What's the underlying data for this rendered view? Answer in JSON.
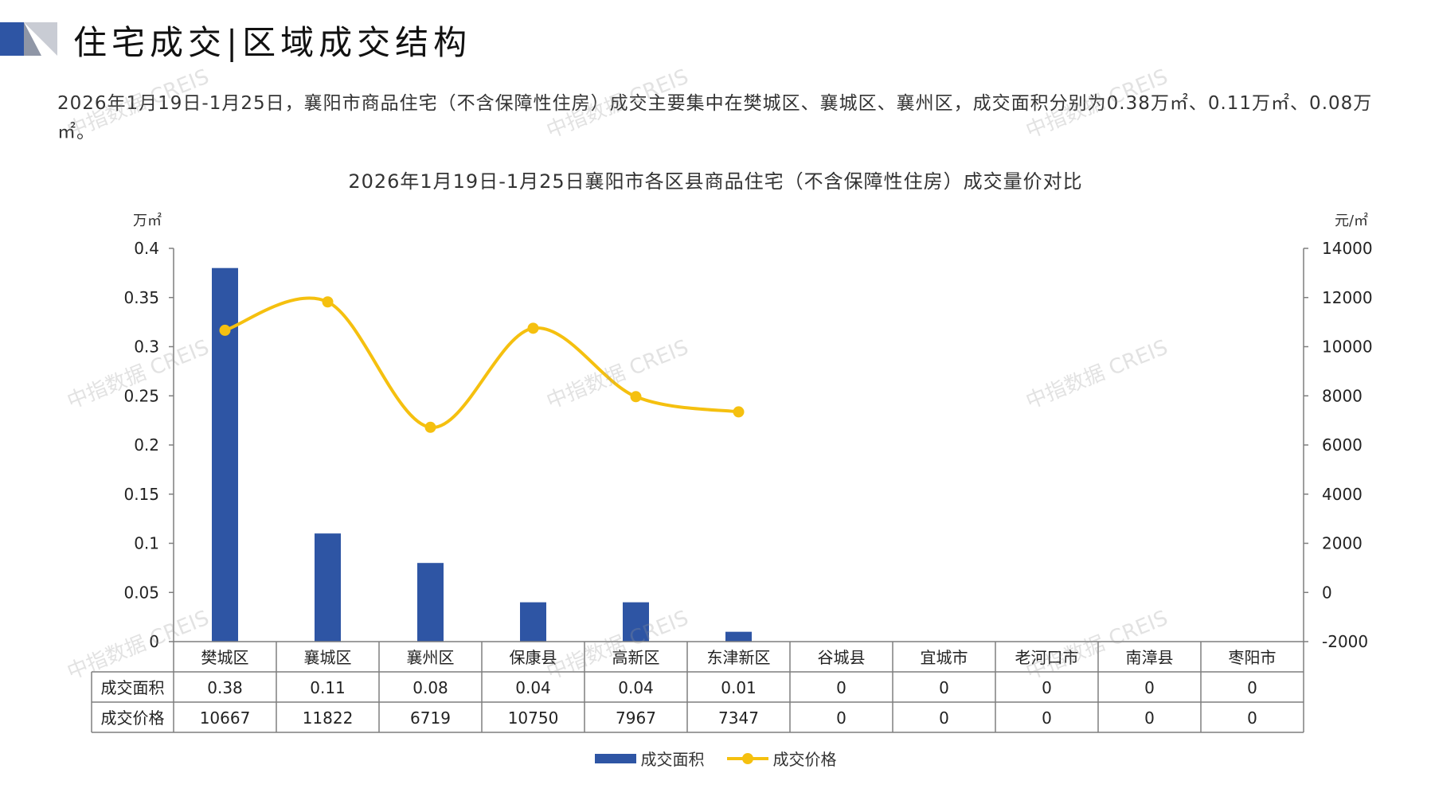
{
  "header": {
    "title": "住宅成交|区域成交结构"
  },
  "summary": {
    "text": "2026年1月19日-1月25日，襄阳市商品住宅（不含保障性住房）成交主要集中在樊城区、襄城区、襄州区，成交面积分别为0.38万㎡、0.11万㎡、0.08万㎡。"
  },
  "watermark": {
    "text": "中指数据 CREIS"
  },
  "colors": {
    "bar": "#2e55a4",
    "line": "#f5c00f",
    "header_accent": "#2e55a4"
  },
  "chart_data": {
    "type": "bar",
    "title": "2026年1月19日-1月25日襄阳市各区县商品住宅（不含保障性住房）成交量价对比",
    "y_left_unit": "万㎡",
    "y_right_unit": "元/㎡",
    "y_left_ticks": [
      "0.4",
      "0.35",
      "0.3",
      "0.25",
      "0.2",
      "0.15",
      "0.1",
      "0.05",
      "0"
    ],
    "y_right_ticks": [
      "14000",
      "12000",
      "10000",
      "8000",
      "6000",
      "4000",
      "2000",
      "0",
      "-2000"
    ],
    "ylim_left": [
      0,
      0.4
    ],
    "ylim_right": [
      -2000,
      14000
    ],
    "categories": [
      "樊城区",
      "襄城区",
      "襄州区",
      "保康县",
      "高新区",
      "东津新区",
      "谷城县",
      "宜城市",
      "老河口市",
      "南漳县",
      "枣阳市"
    ],
    "series": [
      {
        "name": "成交面积",
        "type": "bar",
        "axis": "left",
        "values": [
          0.38,
          0.11,
          0.08,
          0.04,
          0.04,
          0.01,
          0,
          0,
          0,
          0,
          0
        ],
        "labels": [
          "0.38",
          "0.11",
          "0.08",
          "0.04",
          "0.04",
          "0.01",
          "0",
          "0",
          "0",
          "0",
          "0"
        ]
      },
      {
        "name": "成交价格",
        "type": "line",
        "axis": "right",
        "values": [
          10667,
          11822,
          6719,
          10750,
          7967,
          7347,
          0,
          0,
          0,
          0,
          0
        ],
        "labels": [
          "10667",
          "11822",
          "6719",
          "10750",
          "7967",
          "7347",
          "0",
          "0",
          "0",
          "0",
          "0"
        ],
        "plotted_count": 6
      }
    ],
    "legend_position": "bottom",
    "grid": false
  }
}
